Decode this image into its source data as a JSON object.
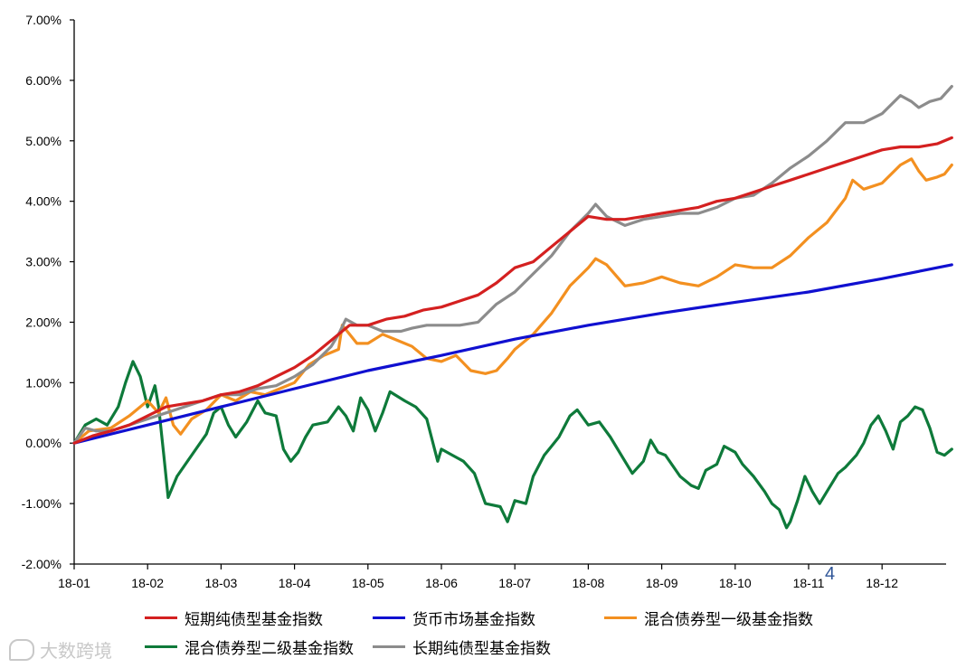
{
  "chart_data": {
    "type": "line",
    "title": "",
    "xlabel": "",
    "ylabel": "",
    "x_ticks": [
      "18-01",
      "18-02",
      "18-03",
      "18-04",
      "18-05",
      "18-06",
      "18-07",
      "18-08",
      "18-09",
      "18-10",
      "18-11",
      "18-12"
    ],
    "y_ticks": [
      "7.00%",
      "6.00%",
      "5.00%",
      "4.00%",
      "3.00%",
      "2.00%",
      "1.00%",
      "0.00%",
      "-1.00%",
      "-2.00%"
    ],
    "ylim": [
      -2,
      7
    ],
    "xlim": [
      0,
      11.95
    ],
    "grid": false,
    "legend_position": "bottom",
    "series": [
      {
        "name": "短期纯债型基金指数",
        "color": "#d42020",
        "points": [
          [
            0,
            0
          ],
          [
            0.25,
            0.12
          ],
          [
            0.5,
            0.2
          ],
          [
            0.75,
            0.3
          ],
          [
            1,
            0.45
          ],
          [
            1.25,
            0.6
          ],
          [
            1.5,
            0.65
          ],
          [
            1.75,
            0.7
          ],
          [
            2,
            0.8
          ],
          [
            2.25,
            0.85
          ],
          [
            2.5,
            0.95
          ],
          [
            2.75,
            1.1
          ],
          [
            3,
            1.25
          ],
          [
            3.25,
            1.45
          ],
          [
            3.5,
            1.7
          ],
          [
            3.6,
            1.8
          ],
          [
            3.75,
            1.95
          ],
          [
            4,
            1.95
          ],
          [
            4.25,
            2.05
          ],
          [
            4.5,
            2.1
          ],
          [
            4.75,
            2.2
          ],
          [
            5,
            2.25
          ],
          [
            5.25,
            2.35
          ],
          [
            5.5,
            2.45
          ],
          [
            5.75,
            2.65
          ],
          [
            6,
            2.9
          ],
          [
            6.25,
            3.0
          ],
          [
            6.5,
            3.25
          ],
          [
            6.75,
            3.5
          ],
          [
            7,
            3.75
          ],
          [
            7.25,
            3.7
          ],
          [
            7.5,
            3.7
          ],
          [
            7.75,
            3.75
          ],
          [
            8,
            3.8
          ],
          [
            8.25,
            3.85
          ],
          [
            8.5,
            3.9
          ],
          [
            8.75,
            4.0
          ],
          [
            9,
            4.05
          ],
          [
            9.25,
            4.15
          ],
          [
            9.5,
            4.25
          ],
          [
            9.75,
            4.35
          ],
          [
            10,
            4.45
          ],
          [
            10.25,
            4.55
          ],
          [
            10.5,
            4.65
          ],
          [
            10.75,
            4.75
          ],
          [
            11,
            4.85
          ],
          [
            11.25,
            4.9
          ],
          [
            11.5,
            4.9
          ],
          [
            11.75,
            4.95
          ],
          [
            11.95,
            5.05
          ]
        ]
      },
      {
        "name": "货币市场基金指数",
        "color": "#1010d0",
        "points": [
          [
            0,
            0
          ],
          [
            1,
            0.3
          ],
          [
            2,
            0.6
          ],
          [
            3,
            0.9
          ],
          [
            4,
            1.2
          ],
          [
            5,
            1.45
          ],
          [
            6,
            1.72
          ],
          [
            7,
            1.95
          ],
          [
            8,
            2.15
          ],
          [
            9,
            2.33
          ],
          [
            10,
            2.5
          ],
          [
            11,
            2.72
          ],
          [
            11.95,
            2.95
          ]
        ]
      },
      {
        "name": "混合债券型一级基金指数",
        "color": "#f39020",
        "points": [
          [
            0,
            0
          ],
          [
            0.2,
            0.2
          ],
          [
            0.5,
            0.25
          ],
          [
            0.75,
            0.45
          ],
          [
            1,
            0.7
          ],
          [
            1.15,
            0.5
          ],
          [
            1.25,
            0.75
          ],
          [
            1.35,
            0.3
          ],
          [
            1.45,
            0.15
          ],
          [
            1.6,
            0.4
          ],
          [
            1.8,
            0.55
          ],
          [
            2,
            0.8
          ],
          [
            2.2,
            0.7
          ],
          [
            2.4,
            0.85
          ],
          [
            2.6,
            0.8
          ],
          [
            2.8,
            0.9
          ],
          [
            3,
            1.0
          ],
          [
            3.2,
            1.3
          ],
          [
            3.4,
            1.45
          ],
          [
            3.5,
            1.5
          ],
          [
            3.6,
            1.55
          ],
          [
            3.65,
            1.95
          ],
          [
            3.75,
            1.8
          ],
          [
            3.85,
            1.65
          ],
          [
            4,
            1.65
          ],
          [
            4.2,
            1.8
          ],
          [
            4.4,
            1.7
          ],
          [
            4.6,
            1.6
          ],
          [
            4.8,
            1.4
          ],
          [
            5,
            1.35
          ],
          [
            5.2,
            1.45
          ],
          [
            5.4,
            1.2
          ],
          [
            5.6,
            1.15
          ],
          [
            5.75,
            1.2
          ],
          [
            5.9,
            1.4
          ],
          [
            6,
            1.55
          ],
          [
            6.25,
            1.8
          ],
          [
            6.5,
            2.15
          ],
          [
            6.75,
            2.6
          ],
          [
            7,
            2.9
          ],
          [
            7.1,
            3.05
          ],
          [
            7.25,
            2.95
          ],
          [
            7.5,
            2.6
          ],
          [
            7.75,
            2.65
          ],
          [
            8,
            2.75
          ],
          [
            8.25,
            2.65
          ],
          [
            8.5,
            2.6
          ],
          [
            8.75,
            2.75
          ],
          [
            9,
            2.95
          ],
          [
            9.25,
            2.9
          ],
          [
            9.5,
            2.9
          ],
          [
            9.75,
            3.1
          ],
          [
            10,
            3.4
          ],
          [
            10.25,
            3.65
          ],
          [
            10.5,
            4.05
          ],
          [
            10.6,
            4.35
          ],
          [
            10.75,
            4.2
          ],
          [
            11,
            4.3
          ],
          [
            11.25,
            4.6
          ],
          [
            11.4,
            4.7
          ],
          [
            11.5,
            4.5
          ],
          [
            11.6,
            4.35
          ],
          [
            11.75,
            4.4
          ],
          [
            11.85,
            4.45
          ],
          [
            11.95,
            4.6
          ]
        ]
      },
      {
        "name": "混合债券型二级基金指数",
        "color": "#0e7a3a",
        "points": [
          [
            0,
            0
          ],
          [
            0.15,
            0.3
          ],
          [
            0.3,
            0.4
          ],
          [
            0.45,
            0.3
          ],
          [
            0.6,
            0.6
          ],
          [
            0.7,
            1.0
          ],
          [
            0.8,
            1.35
          ],
          [
            0.9,
            1.1
          ],
          [
            1,
            0.6
          ],
          [
            1.1,
            0.95
          ],
          [
            1.15,
            0.6
          ],
          [
            1.22,
            -0.2
          ],
          [
            1.28,
            -0.9
          ],
          [
            1.4,
            -0.55
          ],
          [
            1.6,
            -0.2
          ],
          [
            1.8,
            0.15
          ],
          [
            1.9,
            0.5
          ],
          [
            2,
            0.6
          ],
          [
            2.1,
            0.3
          ],
          [
            2.2,
            0.1
          ],
          [
            2.35,
            0.35
          ],
          [
            2.5,
            0.7
          ],
          [
            2.6,
            0.5
          ],
          [
            2.75,
            0.45
          ],
          [
            2.85,
            -0.1
          ],
          [
            2.95,
            -0.3
          ],
          [
            3.05,
            -0.15
          ],
          [
            3.15,
            0.1
          ],
          [
            3.25,
            0.3
          ],
          [
            3.45,
            0.35
          ],
          [
            3.6,
            0.6
          ],
          [
            3.7,
            0.45
          ],
          [
            3.8,
            0.2
          ],
          [
            3.9,
            0.75
          ],
          [
            4,
            0.55
          ],
          [
            4.1,
            0.2
          ],
          [
            4.2,
            0.5
          ],
          [
            4.3,
            0.85
          ],
          [
            4.5,
            0.7
          ],
          [
            4.65,
            0.6
          ],
          [
            4.8,
            0.4
          ],
          [
            4.95,
            -0.3
          ],
          [
            5,
            -0.1
          ],
          [
            5.15,
            -0.2
          ],
          [
            5.3,
            -0.3
          ],
          [
            5.45,
            -0.5
          ],
          [
            5.6,
            -1.0
          ],
          [
            5.8,
            -1.05
          ],
          [
            5.9,
            -1.3
          ],
          [
            6,
            -0.95
          ],
          [
            6.15,
            -1.0
          ],
          [
            6.25,
            -0.55
          ],
          [
            6.4,
            -0.2
          ],
          [
            6.5,
            -0.05
          ],
          [
            6.6,
            0.1
          ],
          [
            6.75,
            0.45
          ],
          [
            6.85,
            0.55
          ],
          [
            7,
            0.3
          ],
          [
            7.15,
            0.35
          ],
          [
            7.3,
            0.1
          ],
          [
            7.45,
            -0.2
          ],
          [
            7.6,
            -0.5
          ],
          [
            7.75,
            -0.3
          ],
          [
            7.85,
            0.05
          ],
          [
            7.95,
            -0.15
          ],
          [
            8.05,
            -0.2
          ],
          [
            8.25,
            -0.55
          ],
          [
            8.4,
            -0.7
          ],
          [
            8.5,
            -0.75
          ],
          [
            8.6,
            -0.45
          ],
          [
            8.75,
            -0.35
          ],
          [
            8.85,
            -0.05
          ],
          [
            9,
            -0.15
          ],
          [
            9.1,
            -0.35
          ],
          [
            9.25,
            -0.55
          ],
          [
            9.4,
            -0.8
          ],
          [
            9.5,
            -1.0
          ],
          [
            9.6,
            -1.1
          ],
          [
            9.7,
            -1.4
          ],
          [
            9.75,
            -1.3
          ],
          [
            9.85,
            -0.95
          ],
          [
            9.95,
            -0.55
          ],
          [
            10.05,
            -0.8
          ],
          [
            10.15,
            -1.0
          ],
          [
            10.25,
            -0.8
          ],
          [
            10.4,
            -0.5
          ],
          [
            10.5,
            -0.4
          ],
          [
            10.65,
            -0.2
          ],
          [
            10.75,
            0.0
          ],
          [
            10.85,
            0.3
          ],
          [
            10.95,
            0.45
          ],
          [
            11.05,
            0.2
          ],
          [
            11.15,
            -0.1
          ],
          [
            11.25,
            0.35
          ],
          [
            11.35,
            0.45
          ],
          [
            11.45,
            0.6
          ],
          [
            11.55,
            0.55
          ],
          [
            11.65,
            0.25
          ],
          [
            11.75,
            -0.15
          ],
          [
            11.85,
            -0.2
          ],
          [
            11.95,
            -0.1
          ]
        ]
      },
      {
        "name": "长期纯债型基金指数",
        "color": "#8c8c8c",
        "points": [
          [
            0,
            0
          ],
          [
            0.15,
            0.25
          ],
          [
            0.3,
            0.2
          ],
          [
            0.5,
            0.2
          ],
          [
            0.75,
            0.3
          ],
          [
            1,
            0.4
          ],
          [
            1.25,
            0.5
          ],
          [
            1.5,
            0.6
          ],
          [
            1.75,
            0.7
          ],
          [
            2,
            0.8
          ],
          [
            2.25,
            0.8
          ],
          [
            2.5,
            0.9
          ],
          [
            2.75,
            0.95
          ],
          [
            3,
            1.1
          ],
          [
            3.25,
            1.3
          ],
          [
            3.5,
            1.6
          ],
          [
            3.6,
            1.8
          ],
          [
            3.7,
            2.05
          ],
          [
            3.85,
            1.95
          ],
          [
            4,
            1.95
          ],
          [
            4.2,
            1.85
          ],
          [
            4.45,
            1.85
          ],
          [
            4.6,
            1.9
          ],
          [
            4.8,
            1.95
          ],
          [
            5,
            1.95
          ],
          [
            5.25,
            1.95
          ],
          [
            5.5,
            2.0
          ],
          [
            5.75,
            2.3
          ],
          [
            6,
            2.5
          ],
          [
            6.25,
            2.8
          ],
          [
            6.5,
            3.1
          ],
          [
            6.75,
            3.5
          ],
          [
            7,
            3.8
          ],
          [
            7.1,
            3.95
          ],
          [
            7.25,
            3.75
          ],
          [
            7.5,
            3.6
          ],
          [
            7.75,
            3.7
          ],
          [
            8,
            3.75
          ],
          [
            8.25,
            3.8
          ],
          [
            8.5,
            3.8
          ],
          [
            8.75,
            3.9
          ],
          [
            9,
            4.05
          ],
          [
            9.25,
            4.1
          ],
          [
            9.5,
            4.3
          ],
          [
            9.75,
            4.55
          ],
          [
            10,
            4.75
          ],
          [
            10.25,
            5.0
          ],
          [
            10.5,
            5.3
          ],
          [
            10.75,
            5.3
          ],
          [
            11,
            5.45
          ],
          [
            11.25,
            5.75
          ],
          [
            11.4,
            5.65
          ],
          [
            11.5,
            5.55
          ],
          [
            11.65,
            5.65
          ],
          [
            11.8,
            5.7
          ],
          [
            11.95,
            5.9
          ]
        ]
      }
    ]
  },
  "watermark": {
    "text": "大数跨境"
  },
  "stray_mark": "4"
}
